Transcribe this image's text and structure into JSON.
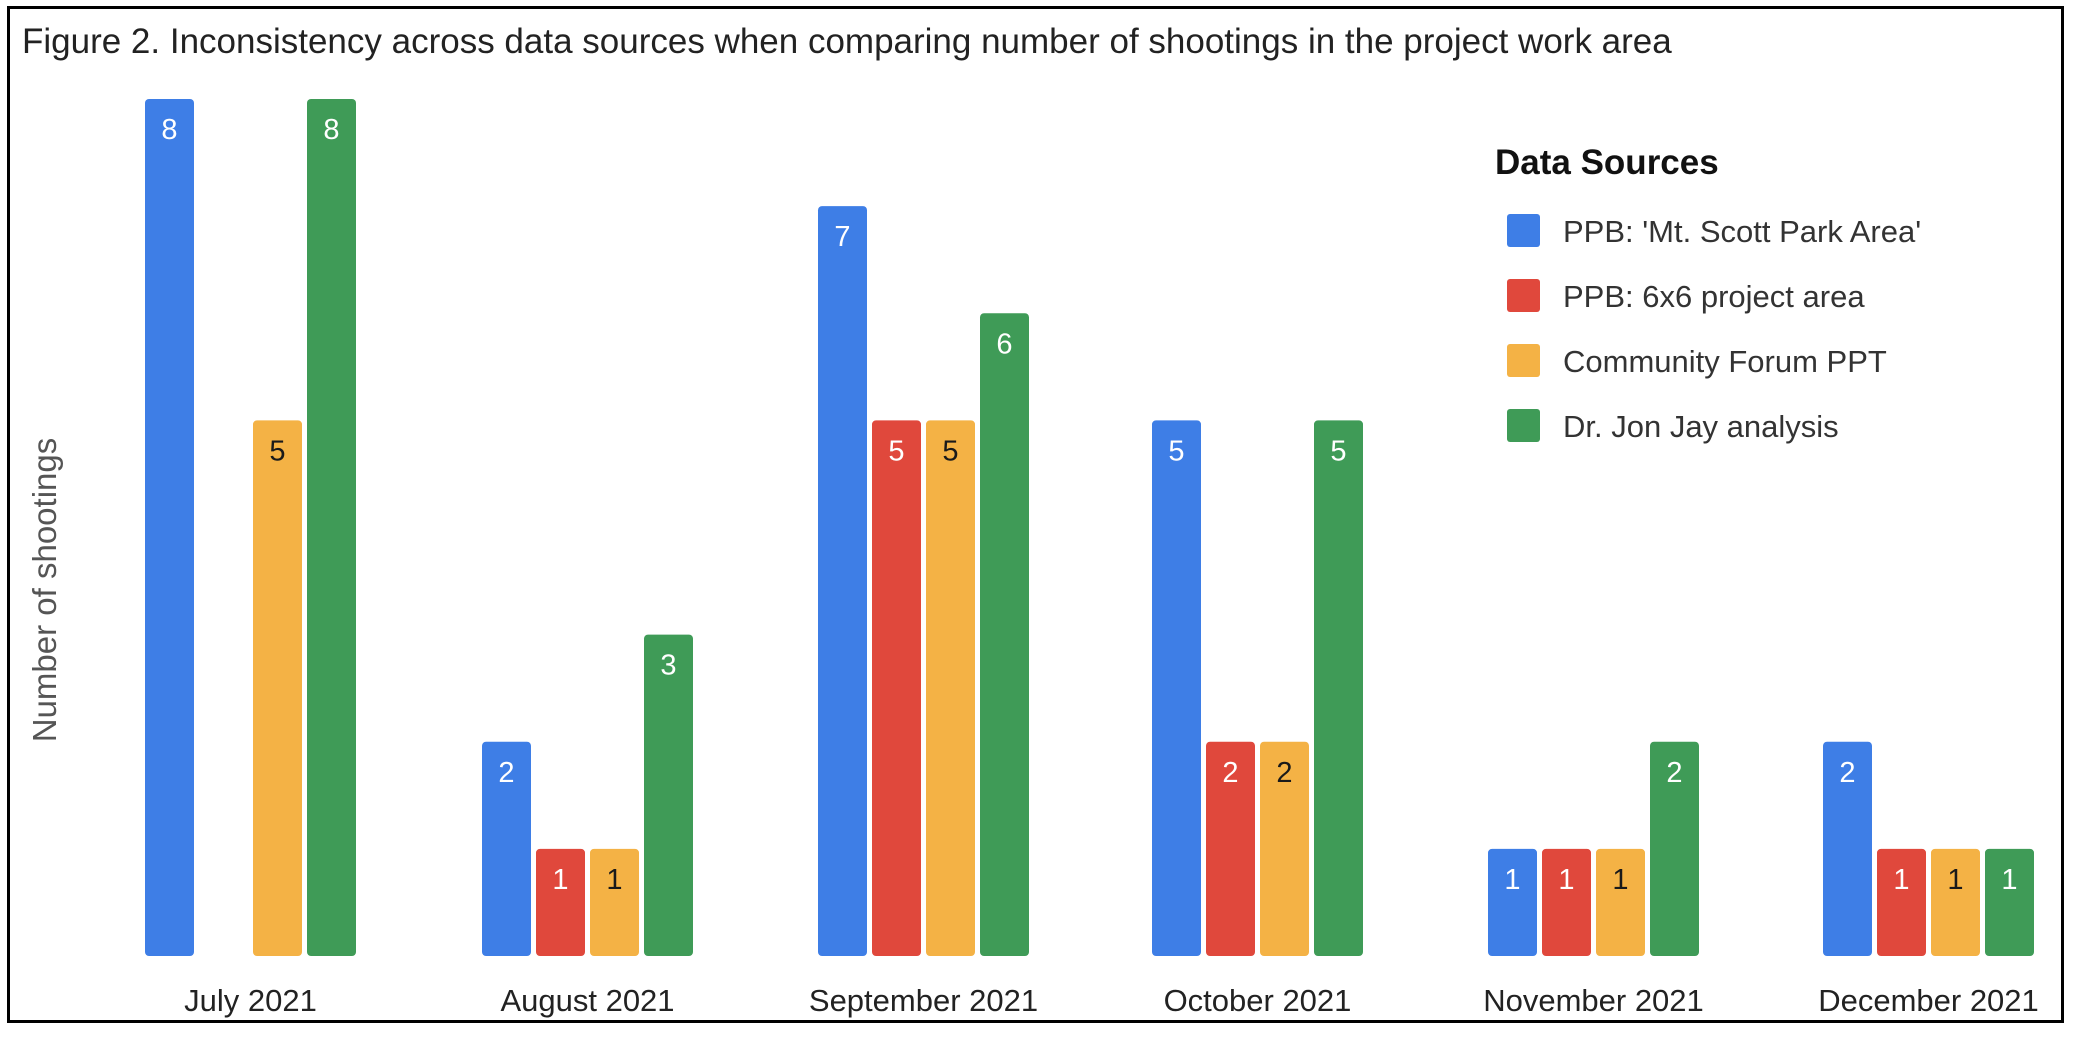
{
  "chart_data": {
    "type": "bar",
    "title": "Figure 2. Inconsistency across data sources when comparing number of shootings in the project work area",
    "xlabel": "",
    "ylabel": "Number of shootings",
    "ylim": [
      0,
      8
    ],
    "grid": false,
    "legend": {
      "title": "Data Sources",
      "placement": "top-right"
    },
    "categories": [
      "July 2021",
      "August 2021",
      "September 2021",
      "October 2021",
      "November 2021",
      "December 2021"
    ],
    "series": [
      {
        "name": "PPB: 'Mt. Scott Park Area'",
        "color": "#3e7ee6",
        "label_color": "#ffffff",
        "values": [
          8,
          2,
          7,
          5,
          1,
          2
        ]
      },
      {
        "name": "PPB: 6x6 project area",
        "color": "#e0483c",
        "label_color": "#ffffff",
        "values": [
          null,
          1,
          5,
          2,
          1,
          1
        ]
      },
      {
        "name": "Community Forum PPT",
        "color": "#f4b245",
        "label_color": "#1a1a1a",
        "values": [
          5,
          1,
          5,
          2,
          1,
          1
        ]
      },
      {
        "name": "Dr. Jon Jay analysis",
        "color": "#3f9b57",
        "label_color": "#ffffff",
        "values": [
          8,
          3,
          6,
          5,
          2,
          1
        ]
      }
    ]
  }
}
